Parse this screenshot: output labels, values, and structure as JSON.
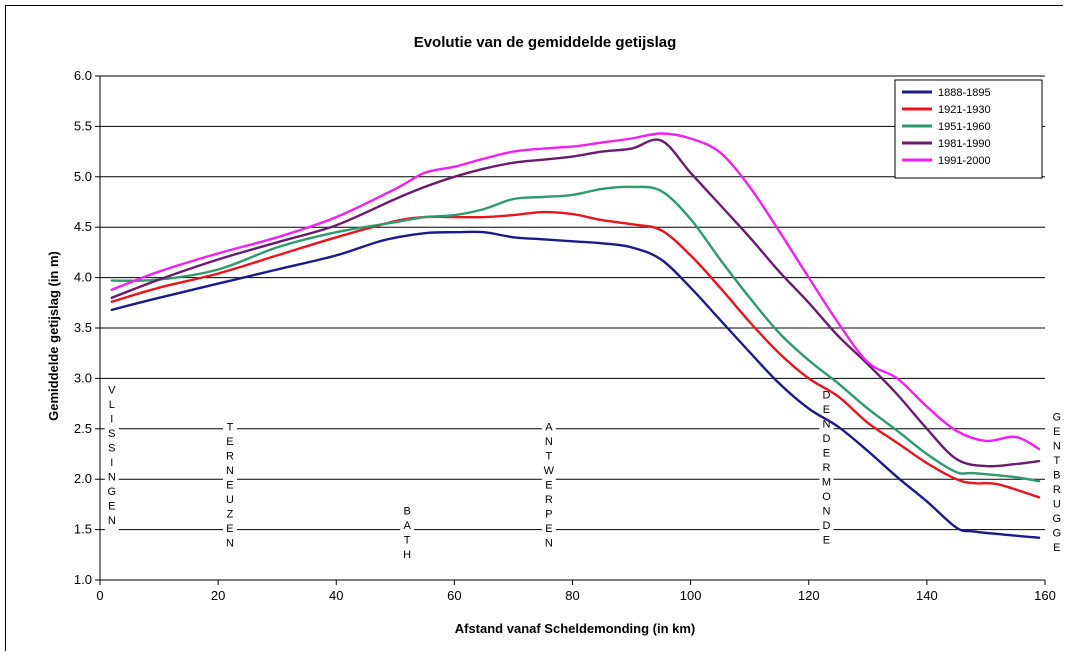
{
  "chart_data": {
    "type": "line",
    "title": "Evolutie van de gemiddelde getijslag",
    "xlabel": "Afstand vanaf Scheldemonding (in km)",
    "ylabel": "Gemiddelde getijslag (in m)",
    "xlim": [
      0,
      160
    ],
    "ylim": [
      1.0,
      6.0
    ],
    "xticks": [
      "0",
      "20",
      "40",
      "60",
      "80",
      "100",
      "120",
      "140",
      "160"
    ],
    "yticks": [
      "1.0",
      "1.5",
      "2.0",
      "2.5",
      "3.0",
      "3.5",
      "4.0",
      "4.5",
      "5.0",
      "5.5",
      "6.0"
    ],
    "grid": "horizontal",
    "legend_position": "top-right",
    "series": [
      {
        "name": "1888-1895",
        "color": "#1a1a8c",
        "points": [
          [
            2,
            3.68
          ],
          [
            10,
            3.8
          ],
          [
            20,
            3.94
          ],
          [
            30,
            4.08
          ],
          [
            40,
            4.22
          ],
          [
            48,
            4.37
          ],
          [
            55,
            4.44
          ],
          [
            60,
            4.45
          ],
          [
            65,
            4.45
          ],
          [
            70,
            4.4
          ],
          [
            75,
            4.38
          ],
          [
            80,
            4.36
          ],
          [
            85,
            4.34
          ],
          [
            90,
            4.3
          ],
          [
            95,
            4.18
          ],
          [
            100,
            3.9
          ],
          [
            105,
            3.58
          ],
          [
            110,
            3.26
          ],
          [
            115,
            2.95
          ],
          [
            120,
            2.7
          ],
          [
            125,
            2.52
          ],
          [
            130,
            2.28
          ],
          [
            135,
            2.02
          ],
          [
            140,
            1.78
          ],
          [
            145,
            1.52
          ],
          [
            148,
            1.48
          ],
          [
            155,
            1.44
          ],
          [
            159,
            1.42
          ]
        ]
      },
      {
        "name": "1921-1930",
        "color": "#e8141e",
        "points": [
          [
            2,
            3.76
          ],
          [
            10,
            3.9
          ],
          [
            20,
            4.04
          ],
          [
            30,
            4.22
          ],
          [
            40,
            4.4
          ],
          [
            50,
            4.56
          ],
          [
            55,
            4.6
          ],
          [
            60,
            4.6
          ],
          [
            65,
            4.6
          ],
          [
            70,
            4.62
          ],
          [
            75,
            4.65
          ],
          [
            80,
            4.63
          ],
          [
            85,
            4.57
          ],
          [
            90,
            4.53
          ],
          [
            95,
            4.47
          ],
          [
            100,
            4.22
          ],
          [
            105,
            3.9
          ],
          [
            110,
            3.56
          ],
          [
            115,
            3.25
          ],
          [
            120,
            3.0
          ],
          [
            125,
            2.82
          ],
          [
            130,
            2.56
          ],
          [
            135,
            2.36
          ],
          [
            140,
            2.16
          ],
          [
            145,
            2.0
          ],
          [
            148,
            1.96
          ],
          [
            152,
            1.95
          ],
          [
            159,
            1.82
          ]
        ]
      },
      {
        "name": "1951-1960",
        "color": "#2e9a6e",
        "points": [
          [
            2,
            3.97
          ],
          [
            10,
            3.98
          ],
          [
            20,
            4.08
          ],
          [
            30,
            4.3
          ],
          [
            40,
            4.45
          ],
          [
            50,
            4.55
          ],
          [
            55,
            4.6
          ],
          [
            60,
            4.62
          ],
          [
            65,
            4.68
          ],
          [
            70,
            4.78
          ],
          [
            75,
            4.8
          ],
          [
            80,
            4.82
          ],
          [
            85,
            4.88
          ],
          [
            90,
            4.9
          ],
          [
            95,
            4.86
          ],
          [
            100,
            4.58
          ],
          [
            105,
            4.18
          ],
          [
            110,
            3.8
          ],
          [
            115,
            3.45
          ],
          [
            120,
            3.18
          ],
          [
            125,
            2.95
          ],
          [
            130,
            2.7
          ],
          [
            135,
            2.48
          ],
          [
            140,
            2.25
          ],
          [
            145,
            2.07
          ],
          [
            148,
            2.06
          ],
          [
            155,
            2.02
          ],
          [
            159,
            1.98
          ]
        ]
      },
      {
        "name": "1981-1990",
        "color": "#6b1a6e",
        "points": [
          [
            2,
            3.8
          ],
          [
            10,
            3.98
          ],
          [
            20,
            4.18
          ],
          [
            30,
            4.35
          ],
          [
            40,
            4.52
          ],
          [
            50,
            4.78
          ],
          [
            55,
            4.9
          ],
          [
            60,
            5.0
          ],
          [
            65,
            5.08
          ],
          [
            70,
            5.14
          ],
          [
            75,
            5.17
          ],
          [
            80,
            5.2
          ],
          [
            85,
            5.25
          ],
          [
            90,
            5.28
          ],
          [
            95,
            5.36
          ],
          [
            100,
            5.04
          ],
          [
            105,
            4.72
          ],
          [
            110,
            4.4
          ],
          [
            115,
            4.06
          ],
          [
            120,
            3.75
          ],
          [
            125,
            3.42
          ],
          [
            130,
            3.14
          ],
          [
            135,
            2.84
          ],
          [
            140,
            2.5
          ],
          [
            145,
            2.2
          ],
          [
            150,
            2.13
          ],
          [
            155,
            2.15
          ],
          [
            159,
            2.18
          ]
        ]
      },
      {
        "name": "1991-2000",
        "color": "#f020f0",
        "points": [
          [
            2,
            3.88
          ],
          [
            10,
            4.06
          ],
          [
            20,
            4.24
          ],
          [
            30,
            4.4
          ],
          [
            40,
            4.6
          ],
          [
            50,
            4.88
          ],
          [
            55,
            5.04
          ],
          [
            60,
            5.1
          ],
          [
            65,
            5.18
          ],
          [
            70,
            5.25
          ],
          [
            75,
            5.28
          ],
          [
            80,
            5.3
          ],
          [
            85,
            5.34
          ],
          [
            90,
            5.38
          ],
          [
            95,
            5.43
          ],
          [
            100,
            5.38
          ],
          [
            105,
            5.24
          ],
          [
            110,
            4.9
          ],
          [
            115,
            4.46
          ],
          [
            120,
            4.0
          ],
          [
            125,
            3.55
          ],
          [
            130,
            3.16
          ],
          [
            135,
            3.0
          ],
          [
            140,
            2.72
          ],
          [
            145,
            2.48
          ],
          [
            150,
            2.38
          ],
          [
            155,
            2.42
          ],
          [
            159,
            2.3
          ]
        ]
      }
    ],
    "places": [
      {
        "name": "VLISSINGEN",
        "km": 2,
        "top": 2.95
      },
      {
        "name": "TERNEUZEN",
        "km": 22,
        "top": 2.58
      },
      {
        "name": "BATH",
        "km": 52,
        "top": 1.75
      },
      {
        "name": "ANTWERPEN",
        "km": 76,
        "top": 2.58
      },
      {
        "name": "DENDERMONDE",
        "km": 123,
        "top": 2.9
      },
      {
        "name": "GENTBRUGGE",
        "km": 162,
        "top": 2.68
      }
    ]
  }
}
